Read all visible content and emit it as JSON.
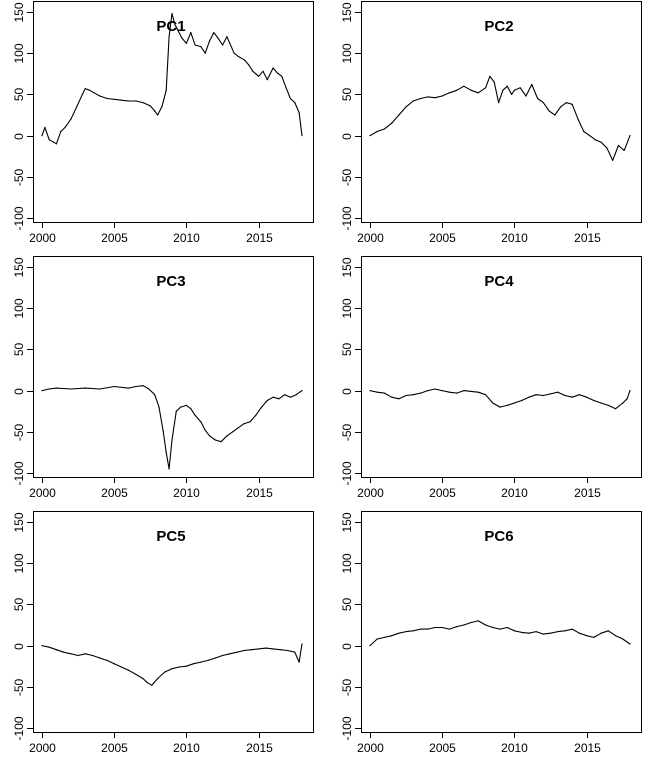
{
  "chart_data": [
    {
      "type": "line",
      "title": "PC1",
      "xlabel": "",
      "ylabel": "",
      "xlim": [
        2000,
        2018
      ],
      "ylim": [
        -100,
        150
      ],
      "xticks": [
        "2000",
        "2005",
        "2010",
        "2015"
      ],
      "yticks": [
        "-100",
        "-50",
        "0",
        "50",
        "100",
        "150"
      ],
      "grid": false,
      "series": [
        {
          "x": [
            2000.0,
            2000.2,
            2000.5,
            2000.8,
            2001.0,
            2001.3,
            2001.6,
            2002.0,
            2002.4,
            2002.8,
            2003.0,
            2003.3,
            2003.6,
            2004.0,
            2004.5,
            2005.0,
            2005.5,
            2006.0,
            2006.5,
            2007.0,
            2007.5,
            2007.8,
            2008.0,
            2008.3,
            2008.6,
            2008.8,
            2009.0,
            2009.2,
            2009.4,
            2009.7,
            2010.0,
            2010.3,
            2010.6,
            2011.0,
            2011.3,
            2011.6,
            2011.9,
            2012.2,
            2012.5,
            2012.8,
            2013.0,
            2013.3,
            2013.6,
            2014.0,
            2014.3,
            2014.6,
            2015.0,
            2015.3,
            2015.6,
            2016.0,
            2016.3,
            2016.6,
            2016.9,
            2017.2,
            2017.5,
            2017.8,
            2018.0
          ],
          "y": [
            0,
            10,
            -5,
            -8,
            -10,
            5,
            10,
            20,
            35,
            50,
            57,
            55,
            52,
            48,
            45,
            44,
            43,
            42,
            42,
            40,
            36,
            30,
            25,
            35,
            55,
            120,
            148,
            135,
            128,
            118,
            112,
            125,
            110,
            108,
            100,
            115,
            125,
            118,
            110,
            120,
            112,
            100,
            96,
            92,
            86,
            78,
            72,
            78,
            68,
            82,
            76,
            72,
            58,
            45,
            40,
            28,
            0
          ]
        }
      ]
    },
    {
      "type": "line",
      "title": "PC2",
      "xlabel": "",
      "ylabel": "",
      "xlim": [
        2000,
        2018
      ],
      "ylim": [
        -100,
        150
      ],
      "xticks": [
        "2000",
        "2005",
        "2010",
        "2015"
      ],
      "yticks": [
        "-100",
        "-50",
        "0",
        "50",
        "100",
        "150"
      ],
      "grid": false,
      "series": [
        {
          "x": [
            2000.0,
            2000.5,
            2001.0,
            2001.5,
            2002.0,
            2002.5,
            2003.0,
            2003.5,
            2004.0,
            2004.5,
            2005.0,
            2005.5,
            2006.0,
            2006.5,
            2007.0,
            2007.5,
            2008.0,
            2008.3,
            2008.6,
            2008.9,
            2009.2,
            2009.5,
            2009.8,
            2010.0,
            2010.4,
            2010.8,
            2011.2,
            2011.6,
            2012.0,
            2012.4,
            2012.8,
            2013.2,
            2013.6,
            2014.0,
            2014.4,
            2014.8,
            2015.2,
            2015.6,
            2016.0,
            2016.4,
            2016.8,
            2017.2,
            2017.6,
            2018.0
          ],
          "y": [
            0,
            5,
            8,
            15,
            25,
            35,
            42,
            45,
            47,
            46,
            48,
            52,
            55,
            60,
            55,
            52,
            58,
            72,
            65,
            40,
            55,
            60,
            50,
            55,
            58,
            48,
            62,
            45,
            40,
            30,
            25,
            35,
            40,
            38,
            20,
            5,
            0,
            -5,
            -8,
            -15,
            -30,
            -12,
            -18,
            0
          ]
        }
      ]
    },
    {
      "type": "line",
      "title": "PC3",
      "xlabel": "",
      "ylabel": "",
      "xlim": [
        2000,
        2018
      ],
      "ylim": [
        -100,
        150
      ],
      "xticks": [
        "2000",
        "2005",
        "2010",
        "2015"
      ],
      "yticks": [
        "-100",
        "-50",
        "0",
        "50",
        "100",
        "150"
      ],
      "grid": false,
      "series": [
        {
          "x": [
            2000.0,
            2000.5,
            2001.0,
            2002.0,
            2003.0,
            2004.0,
            2005.0,
            2006.0,
            2006.5,
            2007.0,
            2007.4,
            2007.8,
            2008.1,
            2008.4,
            2008.6,
            2008.8,
            2009.0,
            2009.3,
            2009.6,
            2010.0,
            2010.3,
            2010.6,
            2011.0,
            2011.3,
            2011.6,
            2012.0,
            2012.4,
            2012.8,
            2013.2,
            2013.6,
            2014.0,
            2014.4,
            2014.8,
            2015.2,
            2015.6,
            2016.0,
            2016.4,
            2016.8,
            2017.2,
            2017.6,
            2018.0
          ],
          "y": [
            0,
            2,
            3,
            2,
            3,
            2,
            5,
            3,
            5,
            6,
            2,
            -5,
            -20,
            -50,
            -75,
            -95,
            -60,
            -25,
            -20,
            -18,
            -22,
            -30,
            -38,
            -48,
            -55,
            -60,
            -62,
            -55,
            -50,
            -45,
            -40,
            -38,
            -30,
            -20,
            -12,
            -8,
            -10,
            -5,
            -8,
            -5,
            0
          ]
        }
      ]
    },
    {
      "type": "line",
      "title": "PC4",
      "xlabel": "",
      "ylabel": "",
      "xlim": [
        2000,
        2018
      ],
      "ylim": [
        -100,
        150
      ],
      "xticks": [
        "2000",
        "2005",
        "2010",
        "2015"
      ],
      "yticks": [
        "-100",
        "-50",
        "0",
        "50",
        "100",
        "150"
      ],
      "grid": false,
      "series": [
        {
          "x": [
            2000.0,
            2000.5,
            2001.0,
            2001.5,
            2002.0,
            2002.5,
            2003.0,
            2003.5,
            2004.0,
            2004.5,
            2005.0,
            2005.5,
            2006.0,
            2006.5,
            2007.0,
            2007.5,
            2008.0,
            2008.5,
            2009.0,
            2009.5,
            2010.0,
            2010.5,
            2011.0,
            2011.5,
            2012.0,
            2012.5,
            2013.0,
            2013.5,
            2014.0,
            2014.5,
            2015.0,
            2015.5,
            2016.0,
            2016.5,
            2017.0,
            2017.5,
            2017.8,
            2018.0
          ],
          "y": [
            0,
            -2,
            -3,
            -8,
            -10,
            -6,
            -5,
            -3,
            0,
            2,
            0,
            -2,
            -3,
            0,
            -1,
            -2,
            -5,
            -15,
            -20,
            -18,
            -15,
            -12,
            -8,
            -5,
            -6,
            -4,
            -2,
            -6,
            -8,
            -5,
            -8,
            -12,
            -15,
            -18,
            -22,
            -15,
            -10,
            0
          ]
        }
      ]
    },
    {
      "type": "line",
      "title": "PC5",
      "xlabel": "",
      "ylabel": "",
      "xlim": [
        2000,
        2018
      ],
      "ylim": [
        -100,
        150
      ],
      "xticks": [
        "2000",
        "2005",
        "2010",
        "2015"
      ],
      "yticks": [
        "-100",
        "-50",
        "0",
        "50",
        "100",
        "150"
      ],
      "grid": false,
      "series": [
        {
          "x": [
            2000.0,
            2000.5,
            2001.0,
            2001.5,
            2002.0,
            2002.5,
            2003.0,
            2003.5,
            2004.0,
            2004.5,
            2005.0,
            2005.5,
            2006.0,
            2006.5,
            2007.0,
            2007.3,
            2007.6,
            2008.0,
            2008.5,
            2009.0,
            2009.5,
            2010.0,
            2010.5,
            2011.0,
            2011.5,
            2012.0,
            2012.5,
            2013.0,
            2013.5,
            2014.0,
            2014.5,
            2015.0,
            2015.5,
            2016.0,
            2016.5,
            2017.0,
            2017.5,
            2017.8,
            2018.0
          ],
          "y": [
            0,
            -2,
            -5,
            -8,
            -10,
            -12,
            -10,
            -12,
            -15,
            -18,
            -22,
            -26,
            -30,
            -35,
            -40,
            -45,
            -48,
            -40,
            -32,
            -28,
            -26,
            -25,
            -22,
            -20,
            -18,
            -15,
            -12,
            -10,
            -8,
            -6,
            -5,
            -4,
            -3,
            -4,
            -5,
            -6,
            -8,
            -20,
            2
          ]
        }
      ]
    },
    {
      "type": "line",
      "title": "PC6",
      "xlabel": "",
      "ylabel": "",
      "xlim": [
        2000,
        2018
      ],
      "ylim": [
        -100,
        150
      ],
      "xticks": [
        "2000",
        "2005",
        "2010",
        "2015"
      ],
      "yticks": [
        "-100",
        "-50",
        "0",
        "50",
        "100",
        "150"
      ],
      "grid": false,
      "series": [
        {
          "x": [
            2000.0,
            2000.5,
            2001.0,
            2001.5,
            2002.0,
            2002.5,
            2003.0,
            2003.5,
            2004.0,
            2004.5,
            2005.0,
            2005.5,
            2006.0,
            2006.5,
            2007.0,
            2007.5,
            2008.0,
            2008.5,
            2009.0,
            2009.5,
            2010.0,
            2010.5,
            2011.0,
            2011.5,
            2012.0,
            2012.5,
            2013.0,
            2013.5,
            2014.0,
            2014.5,
            2015.0,
            2015.5,
            2016.0,
            2016.5,
            2017.0,
            2017.5,
            2018.0
          ],
          "y": [
            0,
            8,
            10,
            12,
            15,
            17,
            18,
            20,
            20,
            22,
            22,
            20,
            23,
            25,
            28,
            30,
            25,
            22,
            20,
            22,
            18,
            16,
            15,
            17,
            14,
            15,
            17,
            18,
            20,
            15,
            12,
            10,
            15,
            18,
            12,
            8,
            2
          ]
        }
      ]
    }
  ]
}
